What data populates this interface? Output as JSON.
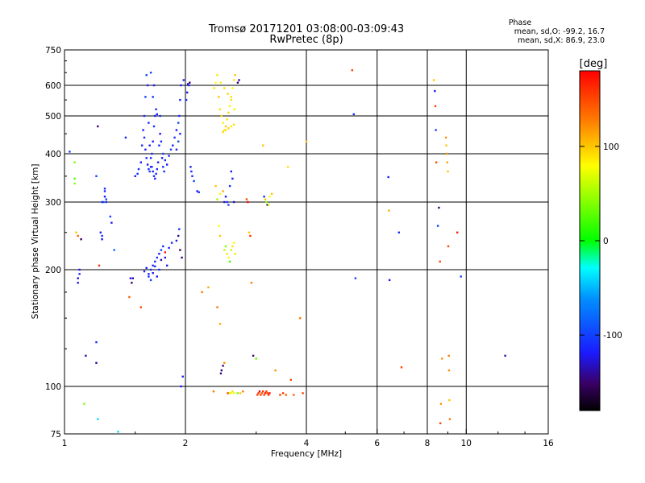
{
  "chart_data": {
    "type": "scatter",
    "title": "Tromsø 20171201 03:08:00-03:09:43",
    "subtitle": "RwPretec (8p)",
    "xlabel": "Frequency [MHz]",
    "ylabel": "Stationary phase Virtual Height [km]",
    "xscale": "log",
    "yscale": "mixed-log",
    "xlim": [
      1,
      16
    ],
    "ylim": [
      75,
      750
    ],
    "x_ticks": [
      {
        "value": 1,
        "label": "1"
      },
      {
        "value": 2,
        "label": "2"
      },
      {
        "value": 4,
        "label": "4"
      },
      {
        "value": 6,
        "label": "6"
      },
      {
        "value": 8,
        "label": "8"
      },
      {
        "value": 10,
        "label": "10"
      },
      {
        "value": 16,
        "label": "16"
      }
    ],
    "y_ticks": [
      {
        "value": 75,
        "label": "75"
      },
      {
        "value": 100,
        "label": "100"
      },
      {
        "value": 200,
        "label": "200"
      },
      {
        "value": 300,
        "label": "300"
      },
      {
        "value": 400,
        "label": "400"
      },
      {
        "value": 500,
        "label": "500"
      },
      {
        "value": 600,
        "label": "600"
      },
      {
        "value": 750,
        "label": "750"
      }
    ],
    "stats": {
      "title": "Phase",
      "line_o": "mean, sd,O: -99.2, 16.7",
      "line_x": "mean, sd,X:  86.9, 23.0"
    },
    "colorbar": {
      "label": "[deg]",
      "range": [
        -180,
        180
      ],
      "ticks": [
        {
          "value": 100,
          "label": "100"
        },
        {
          "value": 0,
          "label": "0"
        },
        {
          "value": -100,
          "label": "-100"
        }
      ]
    },
    "points": [
      [
        1.03,
        405,
        -100
      ],
      [
        1.06,
        380,
        40
      ],
      [
        1.06,
        345,
        20
      ],
      [
        1.06,
        335,
        40
      ],
      [
        1.07,
        250,
        100
      ],
      [
        1.08,
        245,
        140
      ],
      [
        1.09,
        200,
        -120
      ],
      [
        1.09,
        195,
        -110
      ],
      [
        1.08,
        190,
        -130
      ],
      [
        1.08,
        185,
        -120
      ],
      [
        1.1,
        240,
        -150
      ],
      [
        1.12,
        90,
        40
      ],
      [
        1.13,
        120,
        -140
      ],
      [
        1.2,
        130,
        -110
      ],
      [
        1.2,
        115,
        -140
      ],
      [
        1.21,
        470,
        -150
      ],
      [
        1.2,
        350,
        -100
      ],
      [
        1.21,
        82,
        -40
      ],
      [
        1.22,
        205,
        160
      ],
      [
        1.23,
        250,
        -120
      ],
      [
        1.24,
        245,
        -110
      ],
      [
        1.24,
        240,
        -120
      ],
      [
        1.24,
        300,
        -110
      ],
      [
        1.25,
        300,
        -100
      ],
      [
        1.26,
        310,
        -120
      ],
      [
        1.26,
        320,
        -110
      ],
      [
        1.26,
        325,
        -110
      ],
      [
        1.27,
        305,
        -100
      ],
      [
        1.27,
        300,
        -110
      ],
      [
        1.3,
        275,
        -100
      ],
      [
        1.31,
        265,
        -120
      ],
      [
        1.33,
        225,
        -80
      ],
      [
        1.36,
        76,
        -40
      ],
      [
        1.42,
        440,
        -120
      ],
      [
        1.46,
        190,
        -120
      ],
      [
        1.47,
        185,
        -150
      ],
      [
        1.48,
        190,
        -140
      ],
      [
        1.45,
        170,
        140
      ],
      [
        1.55,
        160,
        150
      ],
      [
        1.5,
        350,
        -120
      ],
      [
        1.52,
        355,
        -110
      ],
      [
        1.53,
        365,
        -110
      ],
      [
        1.55,
        380,
        -120
      ],
      [
        1.56,
        420,
        -110
      ],
      [
        1.57,
        460,
        -120
      ],
      [
        1.58,
        500,
        -110
      ],
      [
        1.59,
        560,
        -100
      ],
      [
        1.6,
        640,
        -100
      ],
      [
        1.61,
        600,
        -120
      ],
      [
        1.62,
        480,
        -110
      ],
      [
        1.63,
        420,
        -120
      ],
      [
        1.64,
        390,
        -110
      ],
      [
        1.65,
        370,
        -110
      ],
      [
        1.66,
        360,
        -120
      ],
      [
        1.67,
        350,
        -110
      ],
      [
        1.68,
        345,
        -120
      ],
      [
        1.69,
        355,
        -110
      ],
      [
        1.7,
        365,
        -110
      ],
      [
        1.71,
        380,
        -120
      ],
      [
        1.72,
        420,
        -110
      ],
      [
        1.73,
        450,
        -120
      ],
      [
        1.74,
        430,
        -110
      ],
      [
        1.75,
        390,
        -120
      ],
      [
        1.76,
        370,
        -110
      ],
      [
        1.77,
        360,
        -110
      ],
      [
        1.58,
        440,
        -110
      ],
      [
        1.59,
        410,
        -120
      ],
      [
        1.6,
        390,
        -110
      ],
      [
        1.61,
        375,
        -120
      ],
      [
        1.62,
        365,
        -110
      ],
      [
        1.63,
        360,
        -100
      ],
      [
        1.64,
        370,
        -120
      ],
      [
        1.65,
        400,
        -110
      ],
      [
        1.66,
        430,
        -120
      ],
      [
        1.67,
        470,
        -110
      ],
      [
        1.68,
        500,
        -120
      ],
      [
        1.69,
        520,
        -110
      ],
      [
        1.66,
        560,
        -110
      ],
      [
        1.67,
        600,
        -120
      ],
      [
        1.64,
        650,
        -100
      ],
      [
        1.7,
        505,
        -120
      ],
      [
        1.73,
        500,
        -110
      ],
      [
        1.76,
        400,
        -100
      ],
      [
        1.78,
        385,
        -110
      ],
      [
        1.8,
        375,
        -120
      ],
      [
        1.82,
        395,
        -110
      ],
      [
        1.84,
        410,
        -100
      ],
      [
        1.86,
        420,
        -120
      ],
      [
        1.88,
        440,
        -110
      ],
      [
        1.9,
        460,
        -120
      ],
      [
        1.92,
        480,
        -100
      ],
      [
        1.93,
        500,
        -110
      ],
      [
        1.94,
        550,
        -110
      ],
      [
        1.95,
        600,
        -120
      ],
      [
        1.94,
        450,
        -110
      ],
      [
        1.92,
        430,
        -100
      ],
      [
        1.9,
        410,
        -120
      ],
      [
        1.62,
        195,
        -120
      ],
      [
        1.64,
        200,
        -110
      ],
      [
        1.66,
        205,
        -120
      ],
      [
        1.68,
        210,
        -110
      ],
      [
        1.7,
        215,
        -110
      ],
      [
        1.72,
        220,
        -120
      ],
      [
        1.74,
        225,
        -100
      ],
      [
        1.76,
        230,
        -110
      ],
      [
        1.78,
        215,
        -120
      ],
      [
        1.8,
        205,
        -120
      ],
      [
        1.58,
        198,
        -110
      ],
      [
        1.6,
        202,
        -120
      ],
      [
        1.62,
        192,
        -110
      ],
      [
        1.64,
        188,
        -100
      ],
      [
        1.66,
        196,
        -120
      ],
      [
        1.68,
        204,
        -110
      ],
      [
        1.7,
        192,
        -120
      ],
      [
        1.72,
        200,
        -110
      ],
      [
        1.74,
        212,
        -140
      ],
      [
        1.78,
        222,
        170
      ],
      [
        1.82,
        228,
        -120
      ],
      [
        1.85,
        235,
        -110
      ],
      [
        1.9,
        238,
        -120
      ],
      [
        1.92,
        245,
        -140
      ],
      [
        1.93,
        255,
        -110
      ],
      [
        1.94,
        225,
        -150
      ],
      [
        1.96,
        215,
        -150
      ],
      [
        1.95,
        100,
        -120
      ],
      [
        1.97,
        106,
        -120
      ],
      [
        1.98,
        620,
        -120
      ],
      [
        2.03,
        605,
        -130
      ],
      [
        2.04,
        600,
        -110
      ],
      [
        2.02,
        575,
        -120
      ],
      [
        2.01,
        550,
        -110
      ],
      [
        2.05,
        610,
        -150
      ],
      [
        2.06,
        370,
        -120
      ],
      [
        2.07,
        360,
        -110
      ],
      [
        2.08,
        350,
        -110
      ],
      [
        2.1,
        340,
        -100
      ],
      [
        2.14,
        320,
        -120
      ],
      [
        2.16,
        318,
        -110
      ],
      [
        2.2,
        175,
        130
      ],
      [
        2.28,
        180,
        110
      ],
      [
        2.36,
        590,
        90
      ],
      [
        2.38,
        610,
        80
      ],
      [
        2.4,
        640,
        90
      ],
      [
        2.42,
        560,
        100
      ],
      [
        2.44,
        520,
        90
      ],
      [
        2.46,
        500,
        95
      ],
      [
        2.48,
        480,
        85
      ],
      [
        2.5,
        460,
        90
      ],
      [
        2.52,
        470,
        100
      ],
      [
        2.54,
        490,
        90
      ],
      [
        2.56,
        510,
        95
      ],
      [
        2.58,
        530,
        85
      ],
      [
        2.6,
        560,
        90
      ],
      [
        2.62,
        590,
        80
      ],
      [
        2.64,
        620,
        90
      ],
      [
        2.66,
        640,
        100
      ],
      [
        2.45,
        610,
        85
      ],
      [
        2.5,
        590,
        90
      ],
      [
        2.55,
        570,
        95
      ],
      [
        2.6,
        550,
        90
      ],
      [
        2.65,
        520,
        85
      ],
      [
        2.48,
        455,
        95
      ],
      [
        2.52,
        460,
        90
      ],
      [
        2.56,
        465,
        95
      ],
      [
        2.6,
        470,
        85
      ],
      [
        2.64,
        475,
        90
      ],
      [
        2.7,
        610,
        -150
      ],
      [
        2.72,
        620,
        -140
      ],
      [
        2.38,
        330,
        100
      ],
      [
        2.4,
        305,
        50
      ],
      [
        2.44,
        315,
        80
      ],
      [
        2.48,
        320,
        110
      ],
      [
        2.5,
        300,
        -130
      ],
      [
        2.52,
        310,
        -120
      ],
      [
        2.54,
        300,
        -110
      ],
      [
        2.56,
        295,
        -100
      ],
      [
        2.58,
        330,
        -110
      ],
      [
        2.6,
        360,
        -120
      ],
      [
        2.62,
        345,
        -120
      ],
      [
        2.64,
        300,
        -130
      ],
      [
        2.42,
        260,
        80
      ],
      [
        2.44,
        245,
        100
      ],
      [
        2.5,
        225,
        60
      ],
      [
        2.52,
        230,
        40
      ],
      [
        2.54,
        220,
        90
      ],
      [
        2.56,
        215,
        80
      ],
      [
        2.58,
        210,
        20
      ],
      [
        2.6,
        225,
        60
      ],
      [
        2.62,
        230,
        90
      ],
      [
        2.64,
        235,
        80
      ],
      [
        2.66,
        220,
        90
      ],
      [
        2.4,
        160,
        130
      ],
      [
        2.44,
        145,
        110
      ],
      [
        2.5,
        115,
        120
      ],
      [
        2.48,
        113,
        -150
      ],
      [
        2.46,
        110,
        -150
      ],
      [
        2.45,
        108,
        -140
      ],
      [
        2.35,
        97,
        130
      ],
      [
        2.55,
        96,
        150
      ],
      [
        2.58,
        96,
        60
      ],
      [
        2.6,
        96,
        80
      ],
      [
        2.62,
        97,
        90
      ],
      [
        2.64,
        96,
        70
      ],
      [
        2.7,
        96,
        40
      ],
      [
        2.74,
        96,
        100
      ],
      [
        2.78,
        97,
        130
      ],
      [
        2.84,
        305,
        150
      ],
      [
        2.86,
        300,
        180
      ],
      [
        2.88,
        250,
        100
      ],
      [
        2.9,
        245,
        160
      ],
      [
        2.92,
        185,
        130
      ],
      [
        2.95,
        120,
        -150
      ],
      [
        3.0,
        118,
        30
      ],
      [
        3.02,
        95,
        150
      ],
      [
        3.04,
        96,
        160
      ],
      [
        3.06,
        97,
        180
      ],
      [
        3.08,
        95,
        150
      ],
      [
        3.1,
        96,
        140
      ],
      [
        3.12,
        97,
        160
      ],
      [
        3.14,
        95,
        150
      ],
      [
        3.16,
        96,
        170
      ],
      [
        3.18,
        97,
        155
      ],
      [
        3.2,
        96,
        150
      ],
      [
        3.22,
        95,
        160
      ],
      [
        3.24,
        96,
        175
      ],
      [
        3.12,
        420,
        100
      ],
      [
        3.14,
        310,
        -110
      ],
      [
        3.16,
        305,
        100
      ],
      [
        3.18,
        300,
        40
      ],
      [
        3.2,
        295,
        -150
      ],
      [
        3.22,
        295,
        60
      ],
      [
        3.24,
        310,
        80
      ],
      [
        3.28,
        315,
        100
      ],
      [
        3.35,
        110,
        120
      ],
      [
        3.44,
        95,
        150
      ],
      [
        3.5,
        96,
        160
      ],
      [
        3.56,
        95,
        140
      ],
      [
        3.6,
        370,
        90
      ],
      [
        3.66,
        104,
        150
      ],
      [
        3.72,
        95,
        140
      ],
      [
        3.86,
        150,
        130
      ],
      [
        3.92,
        96,
        150
      ],
      [
        4.0,
        430,
        100
      ],
      [
        5.2,
        660,
        150
      ],
      [
        5.25,
        505,
        -110
      ],
      [
        5.3,
        190,
        -100
      ],
      [
        6.4,
        348,
        -120
      ],
      [
        6.42,
        285,
        110
      ],
      [
        6.44,
        188,
        -120
      ],
      [
        6.8,
        250,
        -110
      ],
      [
        6.9,
        112,
        150
      ],
      [
        8.3,
        620,
        100
      ],
      [
        8.35,
        580,
        -120
      ],
      [
        8.38,
        530,
        150
      ],
      [
        8.4,
        460,
        -100
      ],
      [
        8.42,
        380,
        150
      ],
      [
        8.5,
        260,
        -100
      ],
      [
        8.55,
        290,
        -150
      ],
      [
        8.6,
        210,
        150
      ],
      [
        8.62,
        80,
        150
      ],
      [
        8.65,
        90,
        120
      ],
      [
        8.7,
        118,
        120
      ],
      [
        8.9,
        440,
        120
      ],
      [
        8.92,
        420,
        100
      ],
      [
        8.95,
        400,
        120
      ],
      [
        8.97,
        380,
        110
      ],
      [
        9.0,
        360,
        100
      ],
      [
        9.02,
        230,
        150
      ],
      [
        9.05,
        120,
        130
      ],
      [
        9.06,
        110,
        120
      ],
      [
        9.08,
        92,
        100
      ],
      [
        9.1,
        82,
        130
      ],
      [
        9.5,
        250,
        170
      ],
      [
        9.7,
        192,
        -100
      ],
      [
        12.5,
        120,
        -140
      ]
    ]
  }
}
